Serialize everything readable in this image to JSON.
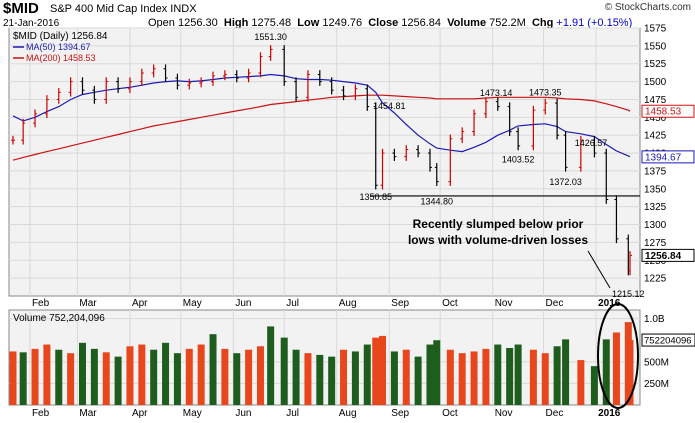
{
  "header": {
    "ticker": "$MID",
    "name": "S&P 400 Mid Cap Index",
    "exchange": "INDX",
    "date": "21-Jan-2016",
    "credit": "© StockCharts.com",
    "open_label": "Open",
    "open": "1256.30",
    "high_label": "High",
    "high": "1275.48",
    "low_label": "Low",
    "low": "1249.76",
    "close_label": "Close",
    "close": "1256.84",
    "volume_label": "Volume",
    "volume": "752.2M",
    "chg_label": "Chg",
    "chg": "+1.91 (+0.15%)"
  },
  "colors": {
    "price_bar": "#000000",
    "price_bar_up": "#cc0000",
    "ma50": "#1b1bb4",
    "ma200": "#cc1111",
    "volume_up": "#e8461c",
    "volume_down": "#1e5d1e",
    "circle": "#000000",
    "annotation": "#000000",
    "grid": "#d9d9d9",
    "panel_bg": "#f2f2f2"
  },
  "chart_data": {
    "type": "line",
    "x": [
      "2015-01-22",
      "2015-01-28",
      "2015-02-04",
      "2015-02-11",
      "2015-02-18",
      "2015-02-25",
      "2015-03-04",
      "2015-03-11",
      "2015-03-18",
      "2015-03-25",
      "2015-04-01",
      "2015-04-08",
      "2015-04-15",
      "2015-04-22",
      "2015-04-29",
      "2015-05-06",
      "2015-05-13",
      "2015-05-20",
      "2015-05-27",
      "2015-06-03",
      "2015-06-10",
      "2015-06-17",
      "2015-06-23",
      "2015-07-01",
      "2015-07-08",
      "2015-07-15",
      "2015-07-22",
      "2015-07-29",
      "2015-08-05",
      "2015-08-12",
      "2015-08-19",
      "2015-08-24",
      "2015-08-28",
      "2015-09-04",
      "2015-09-11",
      "2015-09-18",
      "2015-09-25",
      "2015-09-29",
      "2015-10-07",
      "2015-10-14",
      "2015-10-21",
      "2015-10-28",
      "2015-11-04",
      "2015-11-11",
      "2015-11-16",
      "2015-11-25",
      "2015-12-02",
      "2015-12-09",
      "2015-12-14",
      "2015-12-23",
      "2015-12-31",
      "2016-01-07",
      "2016-01-13",
      "2016-01-20",
      "2016-01-21"
    ],
    "series": [
      {
        "name": "$MID (Daily)",
        "last": "1256.84",
        "values": [
          1418,
          1442,
          1455,
          1475,
          1485,
          1500,
          1488,
          1475,
          1500,
          1490,
          1500,
          1512,
          1518,
          1505,
          1495,
          1498,
          1500,
          1508,
          1510,
          1505,
          1512,
          1535,
          1545,
          1500,
          1478,
          1510,
          1500,
          1488,
          1480,
          1490,
          1465,
          1355,
          1400,
          1395,
          1405,
          1400,
          1380,
          1360,
          1420,
          1430,
          1455,
          1472,
          1465,
          1430,
          1410,
          1460,
          1470,
          1425,
          1380,
          1418,
          1400,
          1335,
          1280,
          1235,
          1256.84
        ]
      },
      {
        "name": "MA(50)",
        "last": "1394.67",
        "values": [
          1452,
          1445,
          1450,
          1458,
          1465,
          1475,
          1482,
          1485,
          1488,
          1490,
          1492,
          1495,
          1498,
          1500,
          1501,
          1500,
          1501,
          1503,
          1505,
          1506,
          1507,
          1508,
          1510,
          1508,
          1504,
          1503,
          1503,
          1502,
          1500,
          1498,
          1495,
          1485,
          1470,
          1456,
          1440,
          1425,
          1413,
          1407,
          1404,
          1402,
          1408,
          1415,
          1425,
          1432,
          1438,
          1440,
          1441,
          1437,
          1430,
          1427,
          1423,
          1412,
          1403,
          1396,
          1394.67
        ]
      },
      {
        "name": "MA(200)",
        "last": "1458.53",
        "values": [
          1390,
          1394,
          1398,
          1402,
          1406,
          1410,
          1414,
          1418,
          1422,
          1426,
          1430,
          1434,
          1438,
          1441,
          1444,
          1447,
          1450,
          1453,
          1456,
          1459,
          1462,
          1465,
          1468,
          1470,
          1472,
          1474,
          1476,
          1478,
          1479,
          1480,
          1481,
          1481,
          1481,
          1480,
          1479,
          1478,
          1477,
          1476,
          1476,
          1476,
          1476,
          1477,
          1478,
          1478,
          1478,
          1478,
          1478,
          1477,
          1476,
          1475,
          1473,
          1469,
          1465,
          1460,
          1458.53
        ]
      }
    ],
    "price_annotations": [
      {
        "x": "2015-06-23",
        "y": 1551.3,
        "label": "1551.30"
      },
      {
        "x": "2015-08-24",
        "y": 1350.85,
        "label": "1350.85"
      },
      {
        "x": "2015-09-01",
        "y": 1454.81,
        "label": "1454.81"
      },
      {
        "x": "2015-09-29",
        "y": 1344.8,
        "label": "1344.80"
      },
      {
        "x": "2015-11-03",
        "y": 1473.14,
        "label": "1473.14"
      },
      {
        "x": "2015-11-16",
        "y": 1403.52,
        "label": "1403.52"
      },
      {
        "x": "2015-12-02",
        "y": 1473.35,
        "label": "1473.35"
      },
      {
        "x": "2015-12-14",
        "y": 1372.03,
        "label": "1372.03"
      },
      {
        "x": "2015-12-29",
        "y": 1426.57,
        "label": "1426.57"
      },
      {
        "x": "2016-01-20",
        "y": 1215.12,
        "label": "1215.12"
      }
    ],
    "support_line": {
      "y": 1340,
      "from": "2015-08-21",
      "to": "2016-01-21"
    },
    "annotation_text": [
      "Recently slumped below prior",
      "lows with volume-driven losses"
    ],
    "price_ylim": [
      1200,
      1575
    ],
    "price_ticks": [
      1225,
      1250,
      1275,
      1300,
      1325,
      1350,
      1375,
      1400,
      1425,
      1450,
      1475,
      1500,
      1525,
      1550,
      1575
    ],
    "x_tick_labels": [
      {
        "date": "2015-02-01",
        "label": "Feb"
      },
      {
        "date": "2015-03-01",
        "label": "Mar"
      },
      {
        "date": "2015-04-01",
        "label": "Apr"
      },
      {
        "date": "2015-05-01",
        "label": "May"
      },
      {
        "date": "2015-06-01",
        "label": "Jun"
      },
      {
        "date": "2015-07-01",
        "label": "Jul"
      },
      {
        "date": "2015-08-01",
        "label": "Aug"
      },
      {
        "date": "2015-09-01",
        "label": "Sep"
      },
      {
        "date": "2015-10-01",
        "label": "Oct"
      },
      {
        "date": "2015-11-01",
        "label": "Nov"
      },
      {
        "date": "2015-12-01",
        "label": "Dec"
      },
      {
        "date": "2016-01-01",
        "label": "2016"
      }
    ],
    "volume": {
      "label": "Volume",
      "last": "752,204,096",
      "last_axis": "752204096",
      "ylim": [
        0,
        1100000000
      ],
      "ticks": [
        {
          "value": 250000000,
          "label": "250M"
        },
        {
          "value": 500000000,
          "label": "500M"
        },
        {
          "value": 1000000000,
          "label": "1.0B"
        }
      ],
      "values_millions": [
        620,
        610,
        650,
        700,
        640,
        600,
        720,
        650,
        610,
        560,
        680,
        700,
        640,
        720,
        600,
        650,
        700,
        820,
        650,
        600,
        640,
        680,
        910,
        780,
        640,
        600,
        580,
        560,
        640,
        620,
        700,
        780,
        800,
        620,
        640,
        560,
        700,
        750,
        640,
        600,
        620,
        650,
        700,
        660,
        700,
        640,
        600,
        680,
        760,
        520,
        450,
        760,
        840,
        960,
        752
      ],
      "up": [
        true,
        false,
        true,
        true,
        false,
        true,
        false,
        false,
        true,
        false,
        true,
        true,
        false,
        false,
        false,
        true,
        true,
        false,
        true,
        false,
        true,
        true,
        false,
        false,
        false,
        true,
        false,
        false,
        true,
        false,
        false,
        true,
        true,
        false,
        true,
        false,
        false,
        false,
        true,
        true,
        true,
        true,
        false,
        false,
        false,
        true,
        true,
        false,
        false,
        true,
        false,
        false,
        true,
        true,
        true
      ]
    }
  }
}
